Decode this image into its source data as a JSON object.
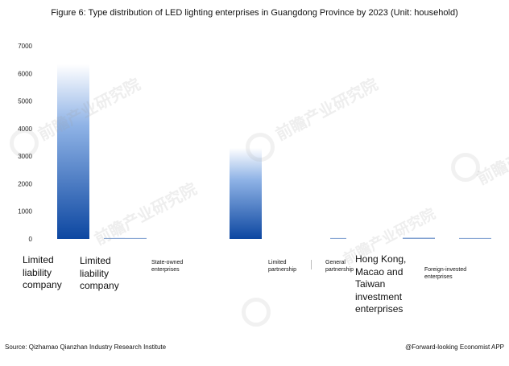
{
  "chart_data": {
    "type": "bar",
    "title": "Figure 6: Type distribution of LED lighting enterprises in Guangdong Province by 2023 (Unit: household)",
    "categories": [
      "Limited liability company",
      "Limited liability company",
      "State-owned enterprises",
      "Limited partnership",
      "General partnership",
      "Hong Kong, Macao and Taiwan investment enterprises",
      "Foreign-invested enterprises"
    ],
    "values": [
      6330,
      20,
      30,
      3300,
      5,
      50,
      30
    ],
    "ylim": [
      0,
      7000
    ],
    "yticks": [
      "0",
      "1000",
      "2000",
      "3000",
      "4000",
      "5000",
      "6000",
      "7000"
    ],
    "xlabel": "",
    "ylabel": "",
    "grid": false,
    "bar_color_top": "#ffffff",
    "bar_color_bottom": "#0d47a1"
  },
  "source": "Source: Qizhamao Qianzhan Industry Research Institute",
  "credit": "@Forward-looking Economist APP",
  "watermark": "前瞻产业研究院"
}
